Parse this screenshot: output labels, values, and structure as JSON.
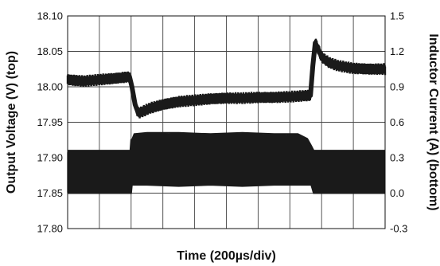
{
  "chart_data": {
    "type": "line",
    "title": "",
    "xlabel": "Time (200µs/div)",
    "ylabel_left": "Output Voltage (V) (top)",
    "ylabel_right": "Inductor Current (A) (bottom)",
    "x_divisions": 10,
    "x_unit": "µs",
    "x_range": [
      0,
      2000
    ],
    "grid": true,
    "left_axis": {
      "range": [
        17.8,
        18.1
      ],
      "ticks": [
        "18.10",
        "18.05",
        "18.00",
        "17.95",
        "17.90",
        "17.85",
        "17.80"
      ],
      "tick_values": [
        18.1,
        18.05,
        18.0,
        17.95,
        17.9,
        17.85,
        17.8
      ]
    },
    "right_axis": {
      "range": [
        -0.3,
        1.5
      ],
      "ticks": [
        "1.5",
        "1.2",
        "0.9",
        "0.6",
        "0.3",
        "0.0",
        "-0.3"
      ],
      "tick_values": [
        1.5,
        1.2,
        0.9,
        0.6,
        0.3,
        0.0,
        -0.3
      ]
    },
    "series": [
      {
        "axis": "left",
        "color": "#1a1a1a",
        "band_width": 0.012,
        "points": [
          [
            0,
            18.01
          ],
          [
            100,
            18.008
          ],
          [
            200,
            18.01
          ],
          [
            300,
            18.012
          ],
          [
            390,
            18.014
          ],
          [
            405,
            18.0
          ],
          [
            425,
            17.975
          ],
          [
            445,
            17.963
          ],
          [
            470,
            17.965
          ],
          [
            520,
            17.97
          ],
          [
            600,
            17.975
          ],
          [
            700,
            17.979
          ],
          [
            800,
            17.981
          ],
          [
            900,
            17.983
          ],
          [
            1000,
            17.984
          ],
          [
            1100,
            17.984
          ],
          [
            1200,
            17.985
          ],
          [
            1300,
            17.985
          ],
          [
            1400,
            17.986
          ],
          [
            1530,
            17.988
          ],
          [
            1545,
            18.03
          ],
          [
            1560,
            18.062
          ],
          [
            1575,
            18.055
          ],
          [
            1600,
            18.042
          ],
          [
            1650,
            18.034
          ],
          [
            1700,
            18.03
          ],
          [
            1800,
            18.026
          ],
          [
            1900,
            18.025
          ],
          [
            2000,
            18.025
          ]
        ]
      },
      {
        "axis": "right",
        "color": "#1a1a1a",
        "points": [
          [
            0,
            0.0,
            0.36
          ],
          [
            395,
            0.0,
            0.36
          ],
          [
            400,
            0.0,
            0.45
          ],
          [
            405,
            0.07,
            0.45
          ],
          [
            420,
            0.07,
            0.5
          ],
          [
            500,
            0.07,
            0.51
          ],
          [
            700,
            0.06,
            0.51
          ],
          [
            900,
            0.07,
            0.5
          ],
          [
            1100,
            0.06,
            0.51
          ],
          [
            1300,
            0.07,
            0.5
          ],
          [
            1450,
            0.07,
            0.5
          ],
          [
            1510,
            0.07,
            0.46
          ],
          [
            1535,
            0.07,
            0.4
          ],
          [
            1550,
            0.0,
            0.36
          ],
          [
            2000,
            0.0,
            0.36
          ]
        ]
      }
    ]
  }
}
